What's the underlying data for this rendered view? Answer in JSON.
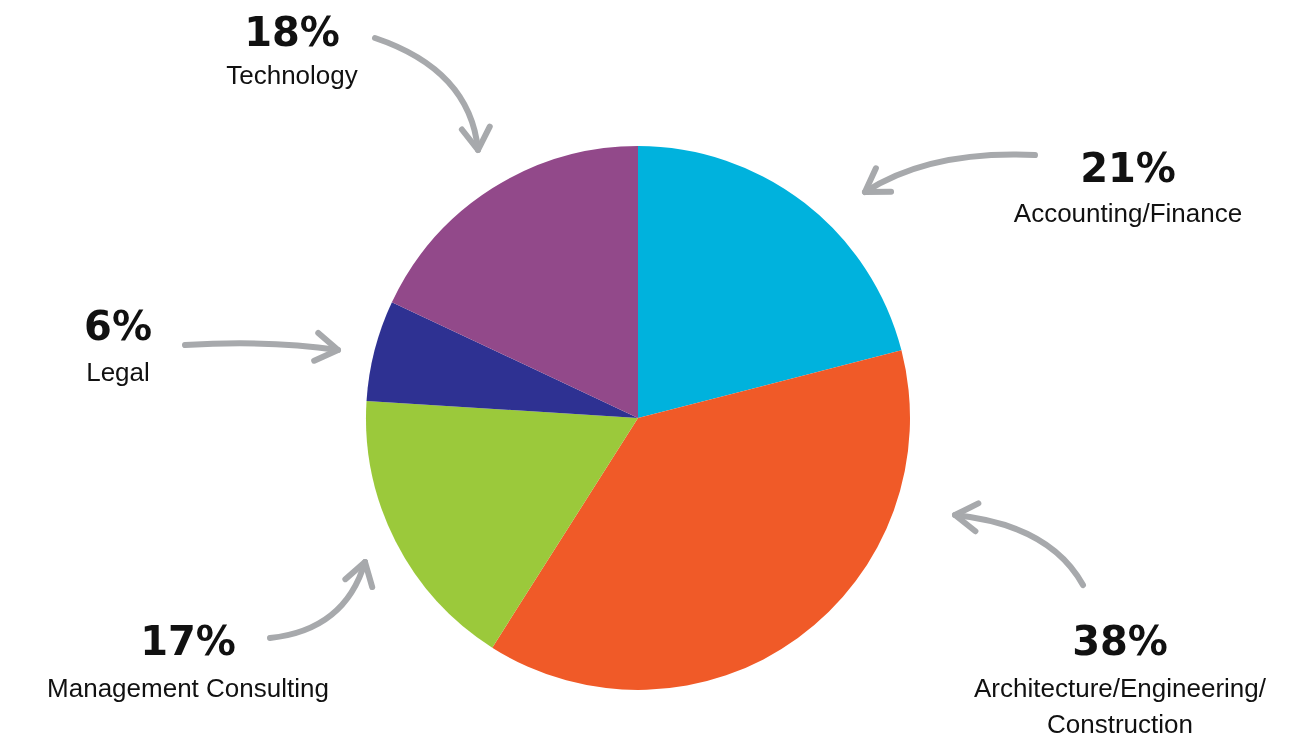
{
  "chart_data": {
    "type": "pie",
    "categories": [
      "Accounting/Finance",
      "Architecture/Engineering/Construction",
      "Management Consulting",
      "Legal",
      "Technology"
    ],
    "values": [
      21,
      38,
      17,
      6,
      18
    ],
    "colors": [
      "#00b2dd",
      "#f05a28",
      "#9bc93b",
      "#2e3192",
      "#92498a"
    ],
    "value_labels": [
      "21%",
      "38%",
      "17%",
      "6%",
      "18%"
    ],
    "legend": false
  }
}
